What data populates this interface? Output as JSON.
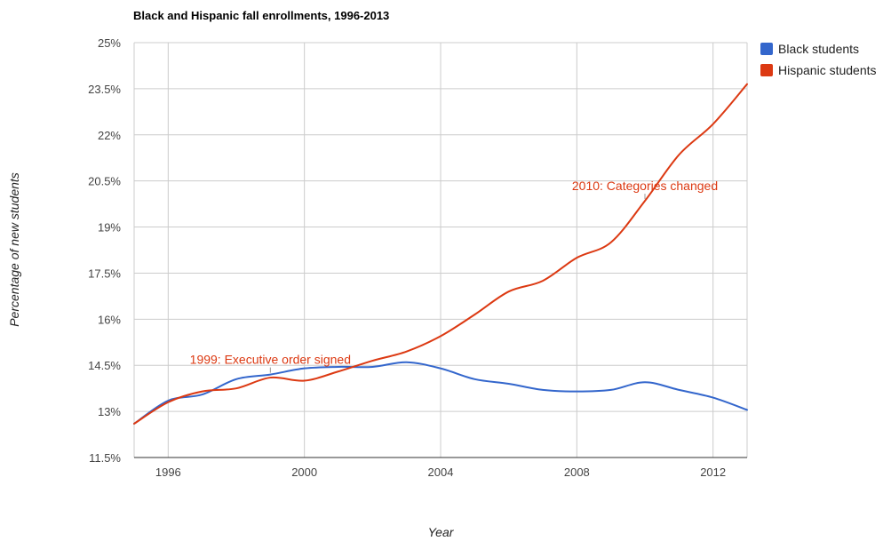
{
  "chart_data": {
    "type": "line",
    "title": "Black and Hispanic fall enrollments, 1996-2013",
    "xlabel": "Year",
    "ylabel": "Percentage of new students",
    "x": [
      1995,
      1996,
      1997,
      1998,
      1999,
      2000,
      2001,
      2002,
      2003,
      2004,
      2005,
      2006,
      2007,
      2008,
      2009,
      2010,
      2011,
      2012,
      2013
    ],
    "xlim": [
      1995,
      2013
    ],
    "xticks": [
      1996,
      2000,
      2004,
      2008,
      2012
    ],
    "xtick_labels": [
      "1996",
      "2000",
      "2004",
      "2008",
      "2012"
    ],
    "ylim": [
      11.5,
      25
    ],
    "yticks": [
      11.5,
      13,
      14.5,
      16,
      17.5,
      19,
      20.5,
      22,
      23.5,
      25
    ],
    "ytick_labels": [
      "11.5%",
      "13%",
      "14.5%",
      "16%",
      "17.5%",
      "19%",
      "20.5%",
      "22%",
      "23.5%",
      "25%"
    ],
    "vertical_grid": true,
    "horizontal_grid": true,
    "legend_position": "right",
    "series": [
      {
        "name": "Black students",
        "color": "#3366cc",
        "values": [
          12.6,
          13.35,
          13.55,
          14.05,
          14.2,
          14.4,
          14.45,
          14.45,
          14.6,
          14.4,
          14.05,
          13.9,
          13.7,
          13.65,
          13.7,
          13.95,
          13.7,
          13.45,
          13.05
        ]
      },
      {
        "name": "Hispanic students",
        "color": "#dc3912",
        "values": [
          12.6,
          13.3,
          13.65,
          13.75,
          14.1,
          14.0,
          14.3,
          14.65,
          14.95,
          15.45,
          16.15,
          16.9,
          17.25,
          18.0,
          18.5,
          19.85,
          21.35,
          22.35,
          23.65
        ]
      }
    ],
    "annotations": [
      {
        "text": "1999: Executive order signed",
        "x": 1999,
        "series": "Black students",
        "color": "#dc3912",
        "anchor": "middle"
      },
      {
        "text": "2010: Categories changed",
        "x": 2010,
        "series": "Hispanic students",
        "color": "#dc3912",
        "anchor": "middle"
      }
    ]
  }
}
